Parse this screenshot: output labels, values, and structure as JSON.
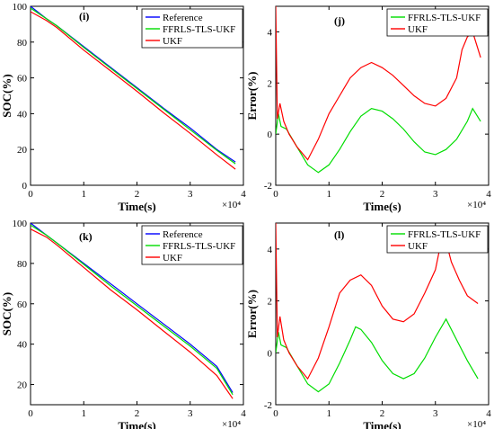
{
  "chart_data": [
    {
      "panel": "(i)",
      "type": "line",
      "xlabel": "Time(s)",
      "ylabel": "SOC(%)",
      "x_exponent_label": "×10⁴",
      "xlim": [
        0,
        4
      ],
      "ylim": [
        0,
        100
      ],
      "xticks": [
        0,
        1,
        2,
        3,
        4
      ],
      "yticks": [
        0,
        20,
        40,
        60,
        80,
        100
      ],
      "legend_position": "top-right",
      "series": [
        {
          "name": "Reference",
          "color": "#0000ff",
          "x": [
            0,
            0.3,
            0.5,
            1.0,
            1.5,
            2.0,
            2.5,
            3.0,
            3.5,
            3.85
          ],
          "y": [
            100,
            93,
            89,
            77.5,
            66,
            54.5,
            43,
            32,
            20,
            13
          ]
        },
        {
          "name": "FFRLS-TLS-UKF",
          "color": "#00dd00",
          "x": [
            0,
            0.3,
            0.5,
            1.0,
            1.5,
            2.0,
            2.5,
            3.0,
            3.5,
            3.85
          ],
          "y": [
            99,
            93,
            89,
            77,
            65.5,
            54,
            42.5,
            31,
            19.5,
            12
          ]
        },
        {
          "name": "UKF",
          "color": "#ff0000",
          "x": [
            0,
            0.3,
            0.5,
            1.0,
            1.5,
            2.0,
            2.5,
            3.0,
            3.5,
            3.85
          ],
          "y": [
            97,
            92,
            88,
            75.5,
            64,
            52.5,
            40.5,
            29,
            17,
            9
          ]
        }
      ]
    },
    {
      "panel": "(j)",
      "type": "line",
      "xlabel": "Time(s)",
      "ylabel": "Error(%)",
      "x_exponent_label": "×10⁴",
      "xlim": [
        0,
        4
      ],
      "ylim": [
        -2,
        5
      ],
      "xticks": [
        0,
        1,
        2,
        3,
        4
      ],
      "yticks": [
        -2,
        0,
        2,
        4
      ],
      "legend_position": "top-left",
      "series": [
        {
          "name": "FFRLS-TLS-UKF",
          "color": "#00dd00",
          "x": [
            0,
            0.05,
            0.1,
            0.2,
            0.4,
            0.6,
            0.8,
            1.0,
            1.2,
            1.4,
            1.6,
            1.8,
            2.0,
            2.2,
            2.4,
            2.6,
            2.8,
            3.0,
            3.2,
            3.4,
            3.6,
            3.7,
            3.85
          ],
          "y": [
            0,
            0.8,
            0.3,
            0.2,
            -0.5,
            -1.2,
            -1.5,
            -1.2,
            -0.6,
            0.1,
            0.7,
            1.0,
            0.9,
            0.6,
            0.2,
            -0.3,
            -0.7,
            -0.8,
            -0.6,
            -0.2,
            0.5,
            1.0,
            0.5
          ]
        },
        {
          "name": "UKF",
          "color": "#ff0000",
          "x": [
            0,
            0.03,
            0.08,
            0.15,
            0.25,
            0.4,
            0.6,
            0.8,
            1.0,
            1.2,
            1.4,
            1.6,
            1.8,
            2.0,
            2.2,
            2.4,
            2.6,
            2.8,
            3.0,
            3.2,
            3.4,
            3.5,
            3.6,
            3.7,
            3.85
          ],
          "y": [
            5.0,
            0.6,
            1.2,
            0.5,
            0,
            -0.5,
            -1.0,
            -0.2,
            0.8,
            1.5,
            2.2,
            2.6,
            2.8,
            2.6,
            2.3,
            1.9,
            1.5,
            1.2,
            1.1,
            1.4,
            2.2,
            3.3,
            3.8,
            4.0,
            3.0
          ]
        }
      ]
    },
    {
      "panel": "(k)",
      "type": "line",
      "xlabel": "Time(s)",
      "ylabel": "SOC(%)",
      "x_exponent_label": "×10⁴",
      "xlim": [
        0,
        4
      ],
      "ylim": [
        10,
        100
      ],
      "xticks": [
        0,
        1,
        2,
        3,
        4
      ],
      "yticks": [
        20,
        40,
        60,
        80,
        100
      ],
      "legend_position": "top-right",
      "series": [
        {
          "name": "Reference",
          "color": "#0000ff",
          "x": [
            0,
            0.3,
            0.5,
            1.0,
            1.5,
            2.0,
            2.5,
            3.0,
            3.5,
            3.8
          ],
          "y": [
            100,
            94,
            90,
            80,
            70,
            60,
            50,
            40,
            29,
            16
          ]
        },
        {
          "name": "FFRLS-TLS-UKF",
          "color": "#00dd00",
          "x": [
            0,
            0.3,
            0.5,
            1.0,
            1.5,
            2.0,
            2.5,
            3.0,
            3.5,
            3.8
          ],
          "y": [
            99,
            94,
            90,
            79.5,
            69,
            59,
            49,
            39,
            28,
            15
          ]
        },
        {
          "name": "UKF",
          "color": "#ff0000",
          "x": [
            0,
            0.3,
            0.5,
            1.0,
            1.5,
            2.0,
            2.5,
            3.0,
            3.5,
            3.8
          ],
          "y": [
            97,
            93,
            89,
            78,
            67,
            57,
            46.5,
            36,
            24.5,
            13
          ]
        }
      ]
    },
    {
      "panel": "(l)",
      "type": "line",
      "xlabel": "Time(s)",
      "ylabel": "Error(%)",
      "x_exponent_label": "×10⁴",
      "xlim": [
        0,
        4
      ],
      "ylim": [
        -2,
        5
      ],
      "xticks": [
        0,
        1,
        2,
        3,
        4
      ],
      "yticks": [
        -2,
        0,
        2,
        4
      ],
      "legend_position": "top-left",
      "series": [
        {
          "name": "FFRLS-TLS-UKF",
          "color": "#00dd00",
          "x": [
            0,
            0.05,
            0.1,
            0.2,
            0.4,
            0.6,
            0.8,
            1.0,
            1.2,
            1.4,
            1.5,
            1.6,
            1.8,
            2.0,
            2.2,
            2.4,
            2.6,
            2.8,
            3.0,
            3.2,
            3.4,
            3.6,
            3.8
          ],
          "y": [
            0,
            0.8,
            0.3,
            0.2,
            -0.5,
            -1.2,
            -1.5,
            -1.2,
            -0.4,
            0.5,
            1.0,
            0.9,
            0.4,
            -0.3,
            -0.8,
            -1.0,
            -0.8,
            -0.2,
            0.6,
            1.3,
            0.5,
            -0.3,
            -1.0
          ]
        },
        {
          "name": "UKF",
          "color": "#ff0000",
          "x": [
            0,
            0.03,
            0.08,
            0.15,
            0.25,
            0.4,
            0.6,
            0.8,
            1.0,
            1.2,
            1.4,
            1.6,
            1.8,
            2.0,
            2.2,
            2.4,
            2.6,
            2.8,
            3.0,
            3.15,
            3.3,
            3.45,
            3.6,
            3.8
          ],
          "y": [
            5.0,
            0.6,
            1.4,
            0.5,
            0,
            -0.5,
            -1.0,
            -0.2,
            1.0,
            2.3,
            2.8,
            3.0,
            2.6,
            1.8,
            1.3,
            1.2,
            1.5,
            2.3,
            3.2,
            4.7,
            3.5,
            2.8,
            2.2,
            1.9
          ]
        }
      ]
    }
  ]
}
